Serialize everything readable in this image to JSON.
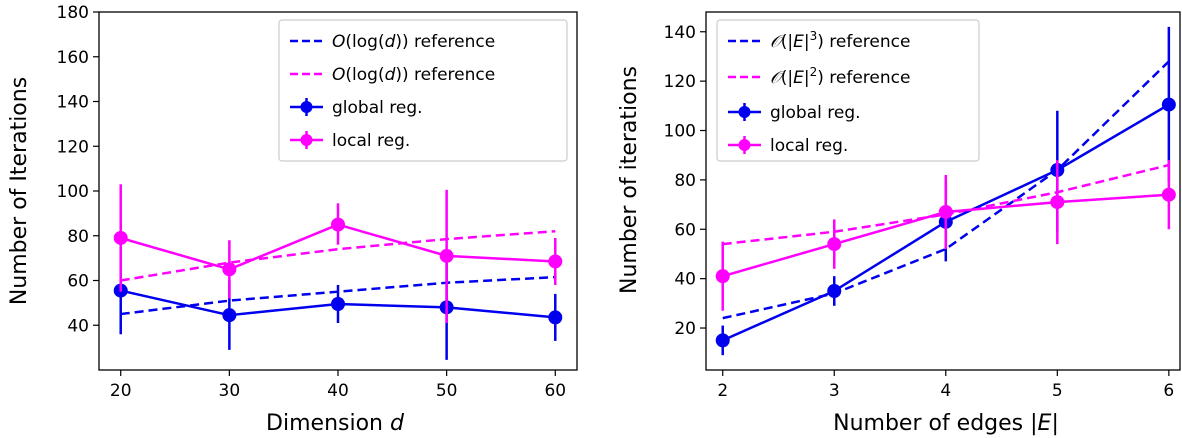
{
  "chart_data": [
    {
      "type": "line",
      "xlabel": "Dimension d",
      "ylabel": "Number of Iterations",
      "x": [
        20,
        30,
        40,
        50,
        60
      ],
      "xticks": [
        "20",
        "30",
        "40",
        "50",
        "60"
      ],
      "ylim": [
        20,
        180
      ],
      "yticks": [
        "40",
        "60",
        "80",
        "100",
        "120",
        "140",
        "160",
        "180"
      ],
      "legend_position": "top-right",
      "grid": false,
      "series": [
        {
          "name": "O(log(d)) reference",
          "style": "dashed",
          "color": "#0000ee",
          "values": [
            45,
            51,
            55,
            59,
            61.5
          ]
        },
        {
          "name": "O(log(d)) reference",
          "style": "dashed",
          "color": "#ff00ff",
          "values": [
            60,
            68,
            74,
            78.5,
            82
          ]
        },
        {
          "name": "global reg.",
          "style": "solid-markers",
          "color": "#0000ee",
          "values": [
            55.5,
            44.5,
            49.5,
            48,
            43.5
          ],
          "error": [
            [
              36,
              75
            ],
            [
              29,
              60
            ],
            [
              41,
              58
            ],
            [
              24.5,
              72
            ],
            [
              33,
              54
            ]
          ]
        },
        {
          "name": "local reg.",
          "style": "solid-markers",
          "color": "#ff00ff",
          "values": [
            79,
            65,
            85,
            71,
            68.5
          ],
          "error": [
            [
              55,
              103
            ],
            [
              52,
              78
            ],
            [
              76,
              94.5
            ],
            [
              41,
              100.5
            ],
            [
              58,
              79
            ]
          ]
        }
      ]
    },
    {
      "type": "line",
      "xlabel": "Number of edges |E|",
      "ylabel": "Number of iterations",
      "x": [
        2,
        3,
        4,
        5,
        6
      ],
      "xticks": [
        "2",
        "3",
        "4",
        "5",
        "6"
      ],
      "ylim": [
        3,
        148
      ],
      "yticks": [
        "20",
        "40",
        "60",
        "80",
        "100",
        "120",
        "140"
      ],
      "legend_position": "top-left",
      "grid": false,
      "series": [
        {
          "name": "O(|E|³) reference",
          "style": "dashed",
          "color": "#0000ee",
          "values": [
            24,
            34,
            52,
            84,
            128
          ]
        },
        {
          "name": "O(|E|²) reference",
          "style": "dashed",
          "color": "#ff00ff",
          "values": [
            54,
            59,
            66,
            75,
            86
          ]
        },
        {
          "name": "global reg.",
          "style": "solid-markers",
          "color": "#0000ee",
          "values": [
            15,
            35,
            63,
            84,
            110.5
          ],
          "error": [
            [
              9,
              21
            ],
            [
              29,
              41
            ],
            [
              47,
              79
            ],
            [
              59,
              108
            ],
            [
              79,
              142
            ]
          ]
        },
        {
          "name": "local reg.",
          "style": "solid-markers",
          "color": "#ff00ff",
          "values": [
            41,
            54,
            67,
            71,
            74
          ],
          "error": [
            [
              27,
              55
            ],
            [
              44,
              64
            ],
            [
              52,
              82
            ],
            [
              54,
              88
            ],
            [
              60,
              88
            ]
          ]
        }
      ]
    }
  ],
  "legends": [
    {
      "items": [
        {
          "prefix": "O",
          "mid": "(log(",
          "var": "d",
          "suffix": ")) reference"
        },
        {
          "prefix": "O",
          "mid": "(log(",
          "var": "d",
          "suffix": ")) reference"
        },
        {
          "text": "global reg."
        },
        {
          "text": "local reg."
        }
      ]
    },
    {
      "items": [
        {
          "prefix": "𝒪",
          "mid": "(|",
          "var": "E",
          "pipe": "|",
          "exp": "3",
          "suffix": ") reference"
        },
        {
          "prefix": "𝒪",
          "mid": "(|",
          "var": "E",
          "pipe": "|",
          "exp": "2",
          "suffix": ") reference"
        },
        {
          "text": "global reg."
        },
        {
          "text": "local reg."
        }
      ]
    }
  ],
  "axis_text": {
    "left_xlabel_main": "Dimension ",
    "left_xlabel_var": "d",
    "left_ylabel": "Number of Iterations",
    "right_xlabel_main": "Number of edges |",
    "right_xlabel_var": "E",
    "right_xlabel_end": "|",
    "right_ylabel": "Number of iterations"
  }
}
